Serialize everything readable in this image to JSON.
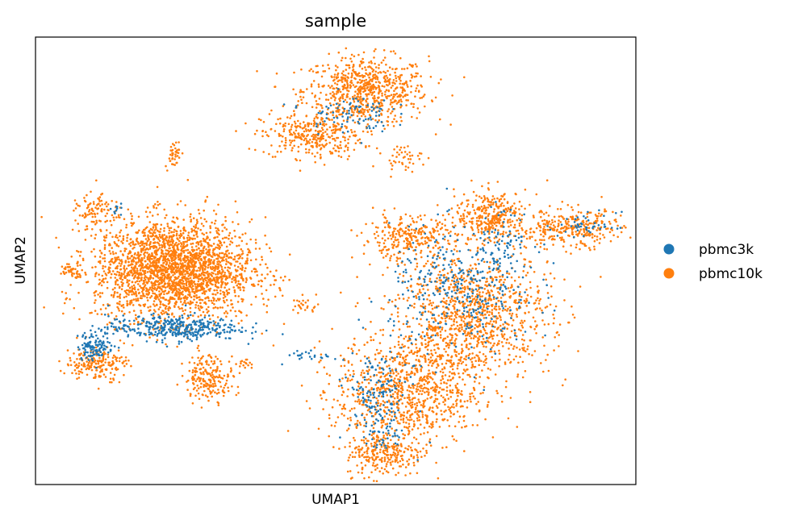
{
  "chart_data": {
    "type": "scatter",
    "title": "sample",
    "xlabel": "UMAP1",
    "ylabel": "UMAP2",
    "xlim": [
      0,
      100
    ],
    "ylim": [
      0,
      100
    ],
    "grid": false,
    "ticks": false,
    "legend": {
      "placement": "right",
      "entries": [
        {
          "name": "pbmc3k",
          "color": "#1f77b4"
        },
        {
          "name": "pbmc10k",
          "color": "#ff7f0e"
        }
      ]
    },
    "series": [
      {
        "name": "pbmc10k",
        "color": "#ff7f0e",
        "clusters": [
          {
            "center": [
              55,
              88
            ],
            "spread": [
              5.2,
              3.8
            ],
            "density": 700
          },
          {
            "center": [
              46,
              78
            ],
            "spread": [
              4.2,
              2.5
            ],
            "density": 320
          },
          {
            "center": [
              23,
              48
            ],
            "spread": [
              6.5,
              5.6
            ],
            "density": 2500
          },
          {
            "center": [
              10,
              61
            ],
            "spread": [
              1.6,
              1.8
            ],
            "density": 90
          },
          {
            "center": [
              6,
              48
            ],
            "spread": [
              1.0,
              0.8
            ],
            "density": 40
          },
          {
            "center": [
              29,
              24
            ],
            "spread": [
              2.1,
              2.5
            ],
            "density": 200
          },
          {
            "center": [
              10,
              27
            ],
            "spread": [
              2.5,
              1.9
            ],
            "density": 190
          },
          {
            "center": [
              62,
              55
            ],
            "spread": [
              3.9,
              2.4
            ],
            "density": 280
          },
          {
            "center": [
              76,
              60
            ],
            "spread": [
              3.0,
              2.8
            ],
            "density": 320
          },
          {
            "center": [
              89,
              57
            ],
            "spread": [
              4.4,
              2.2
            ],
            "density": 300
          },
          {
            "center": [
              73,
              38
            ],
            "spread": [
              6.4,
              7.0
            ],
            "density": 1050
          },
          {
            "center": [
              62,
              21
            ],
            "spread": [
              6.0,
              6.0
            ],
            "density": 900
          },
          {
            "center": [
              58,
              7
            ],
            "spread": [
              3.2,
              2.6
            ],
            "density": 260
          },
          {
            "center": [
              23,
              74
            ],
            "spread": [
              0.7,
              1.6
            ],
            "density": 40
          },
          {
            "center": [
              61,
              73
            ],
            "spread": [
              1.7,
              1.4
            ],
            "density": 45
          },
          {
            "center": [
              45,
              40
            ],
            "spread": [
              1.1,
              0.9
            ],
            "density": 25
          },
          {
            "center": [
              35,
              27
            ],
            "spread": [
              0.8,
              0.6
            ],
            "density": 15
          }
        ]
      },
      {
        "name": "pbmc3k",
        "color": "#1f77b4",
        "clusters": [
          {
            "center": [
              23,
              35
            ],
            "spread": [
              5.5,
              1.4
            ],
            "density": 380
          },
          {
            "center": [
              10,
              31
            ],
            "spread": [
              1.5,
              1.6
            ],
            "density": 120
          },
          {
            "center": [
              52,
              83
            ],
            "spread": [
              3.6,
              2.2
            ],
            "density": 90
          },
          {
            "center": [
              71,
              43
            ],
            "spread": [
              6.0,
              7.0
            ],
            "density": 360
          },
          {
            "center": [
              78,
              55
            ],
            "spread": [
              2.6,
              3.2
            ],
            "density": 70
          },
          {
            "center": [
              92,
              58
            ],
            "spread": [
              2.4,
              1.4
            ],
            "density": 45
          },
          {
            "center": [
              57,
              20
            ],
            "spread": [
              2.6,
              4.8
            ],
            "density": 150
          },
          {
            "center": [
              58,
              11
            ],
            "spread": [
              1.8,
              1.8
            ],
            "density": 35
          },
          {
            "center": [
              46,
              29
            ],
            "spread": [
              2.2,
              0.8
            ],
            "density": 25
          },
          {
            "center": [
              14,
              61
            ],
            "spread": [
              0.6,
              0.8
            ],
            "density": 10
          }
        ]
      }
    ]
  }
}
